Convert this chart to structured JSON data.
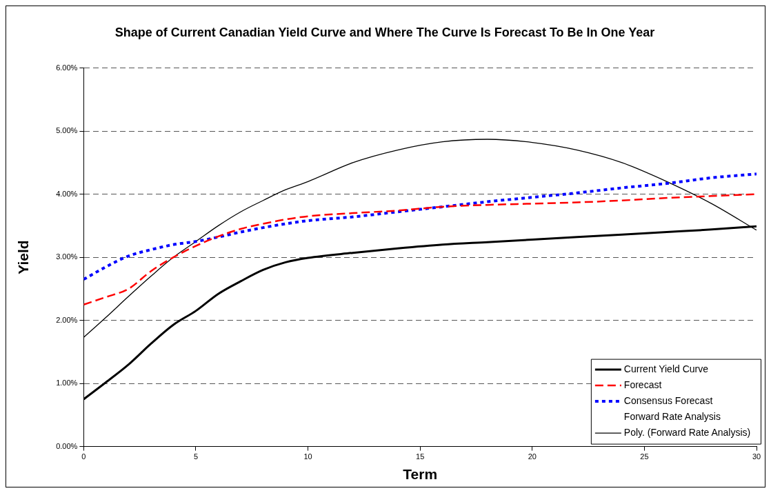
{
  "chart_data": {
    "type": "line",
    "title": "Shape of Current Canadian Yield Curve and Where The Curve Is Forecast To Be In One Year",
    "xlabel": "Term",
    "ylabel": "Yield",
    "x": [
      0,
      1,
      2,
      3,
      4,
      5,
      6,
      7,
      8,
      9,
      10,
      12,
      14,
      16,
      18,
      20,
      22,
      24,
      26,
      28,
      30
    ],
    "series": [
      {
        "name": "Current Yield Curve",
        "color": "#000000",
        "line_style": "solid",
        "values": [
          0.75,
          1.02,
          1.3,
          1.63,
          1.93,
          2.15,
          2.42,
          2.62,
          2.8,
          2.92,
          2.99,
          3.07,
          3.14,
          3.2,
          3.24,
          3.28,
          3.32,
          3.36,
          3.4,
          3.44,
          3.49
        ]
      },
      {
        "name": "Forecast",
        "color": "#ff0000",
        "line_style": "dashed",
        "values": [
          2.25,
          2.37,
          2.5,
          2.78,
          3.0,
          3.18,
          3.33,
          3.45,
          3.53,
          3.6,
          3.65,
          3.7,
          3.74,
          3.8,
          3.83,
          3.85,
          3.87,
          3.9,
          3.94,
          3.97,
          4.0
        ]
      },
      {
        "name": "Consensus Forecast",
        "color": "#0000ff",
        "line_style": "dotted",
        "values": [
          2.65,
          2.85,
          3.02,
          3.12,
          3.2,
          3.25,
          3.32,
          3.4,
          3.47,
          3.53,
          3.58,
          3.64,
          3.72,
          3.8,
          3.88,
          3.95,
          4.02,
          4.1,
          4.17,
          4.26,
          4.32
        ]
      },
      {
        "name": "Forward Rate Analysis",
        "values": [
          null,
          null,
          null,
          null,
          null,
          null,
          null,
          null,
          null,
          null,
          null,
          null,
          null,
          null,
          null,
          null,
          null,
          null,
          null,
          null,
          null
        ]
      },
      {
        "name": "Poly. (Forward Rate Analysis)",
        "color": "#000000",
        "line_style": "solid",
        "values": [
          1.73,
          2.05,
          2.38,
          2.7,
          3.0,
          3.25,
          3.5,
          3.72,
          3.9,
          4.07,
          4.2,
          4.5,
          4.7,
          4.83,
          4.87,
          4.82,
          4.7,
          4.5,
          4.2,
          3.85,
          3.43
        ]
      }
    ],
    "xlim": [
      0,
      30
    ],
    "xticks": [
      0,
      5,
      10,
      15,
      20,
      25,
      30
    ],
    "ylim": [
      0,
      6
    ],
    "yticks": [
      {
        "value": 0,
        "label": "0.00%"
      },
      {
        "value": 1,
        "label": "1.00%"
      },
      {
        "value": 2,
        "label": "2.00%"
      },
      {
        "value": 3,
        "label": "3.00%"
      },
      {
        "value": 4,
        "label": "4.00%"
      },
      {
        "value": 5,
        "label": "5.00%"
      },
      {
        "value": 6,
        "label": "6.00%"
      }
    ],
    "grid": "y",
    "legend": "bottom right",
    "marker": "none"
  }
}
